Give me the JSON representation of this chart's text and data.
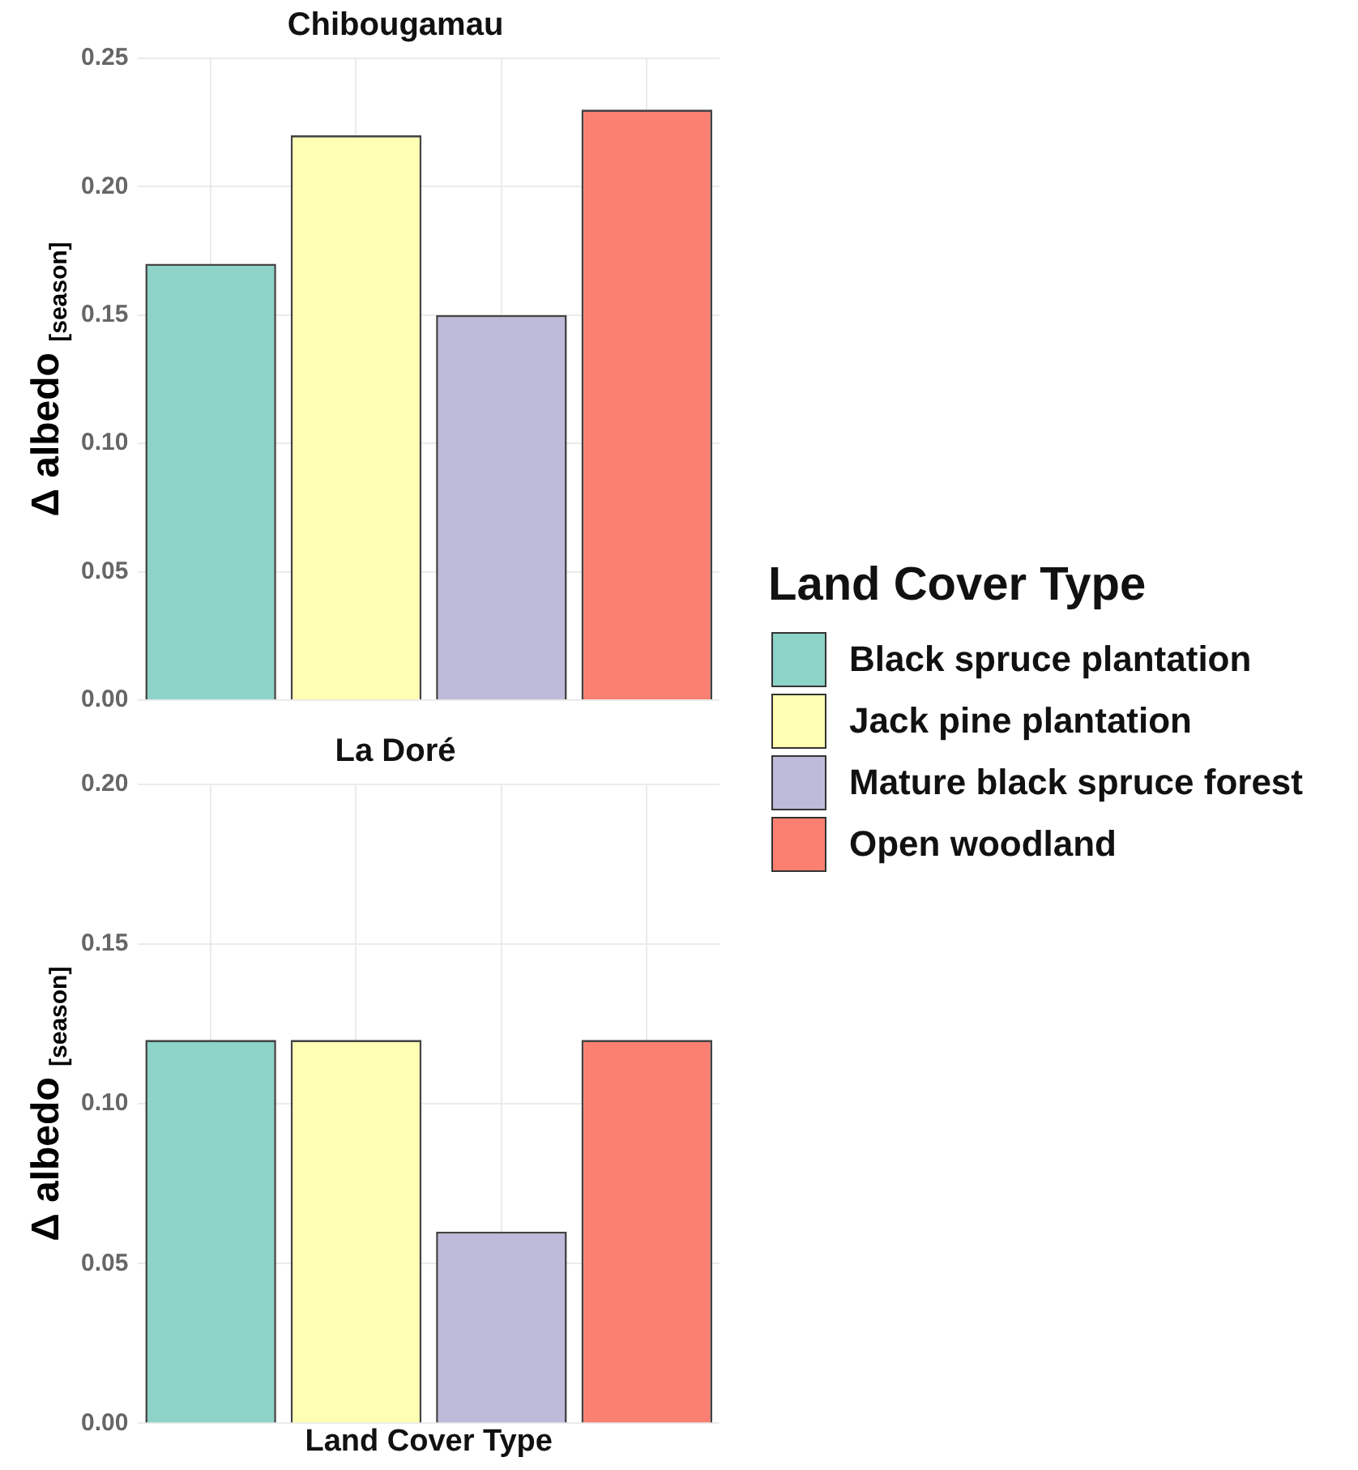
{
  "chart_data": [
    {
      "type": "bar",
      "title": "Chibougamau",
      "ylabel": "Δ albedo $_{[season]}$",
      "legend_title": "Land Cover Type",
      "legend": "right",
      "grid": true,
      "tick_labels": "y",
      "categories": [
        null,
        null,
        null,
        null
      ],
      "ylim": [
        0,
        0.25
      ],
      "yticks": [
        {
          "value": 0,
          "label": "0.00"
        },
        0.05,
        {
          "value": 0.1,
          "label": "0.10"
        },
        0.15,
        {
          "value": 0.2,
          "label": "0.20"
        },
        0.25
      ],
      "series": [
        {
          "name": "Black spruce plantation",
          "color": "#8dd3c7",
          "values": [
            0.17,
            null,
            null,
            null
          ]
        },
        {
          "name": "Jack pine plantation",
          "color": "#ffffb3",
          "values": [
            null,
            0.22,
            null,
            null
          ]
        },
        {
          "name": "Mature black spruce forest",
          "color": "#bebada",
          "values": [
            null,
            null,
            0.15,
            null
          ]
        },
        {
          "name": "Open woodland",
          "color": "#fb8072",
          "values": [
            null,
            null,
            null,
            0.23
          ]
        }
      ]
    },
    {
      "type": "bar",
      "title": "La Doré",
      "ylabel": "Δ albedo $_{[season]}$",
      "xlabel": "Land Cover Type",
      "grid": true,
      "tick_labels": "y",
      "categories": [
        null,
        null,
        null,
        null
      ],
      "ylim": [
        0,
        0.2
      ],
      "yticks": [
        {
          "value": 0,
          "label": "0.00"
        },
        0.05,
        {
          "value": 0.1,
          "label": "0.10"
        },
        0.15,
        {
          "value": 0.2,
          "label": "0.20"
        }
      ],
      "series": [
        {
          "color": "#8dd3c7",
          "values": [
            0.12,
            null,
            null,
            null
          ]
        },
        {
          "color": "#ffffb3",
          "values": [
            null,
            0.12,
            null,
            null
          ]
        },
        {
          "color": "#bebada",
          "values": [
            null,
            null,
            0.06,
            null
          ]
        },
        {
          "color": "#fb8072",
          "values": [
            null,
            null,
            null,
            0.12
          ]
        }
      ]
    }
  ]
}
